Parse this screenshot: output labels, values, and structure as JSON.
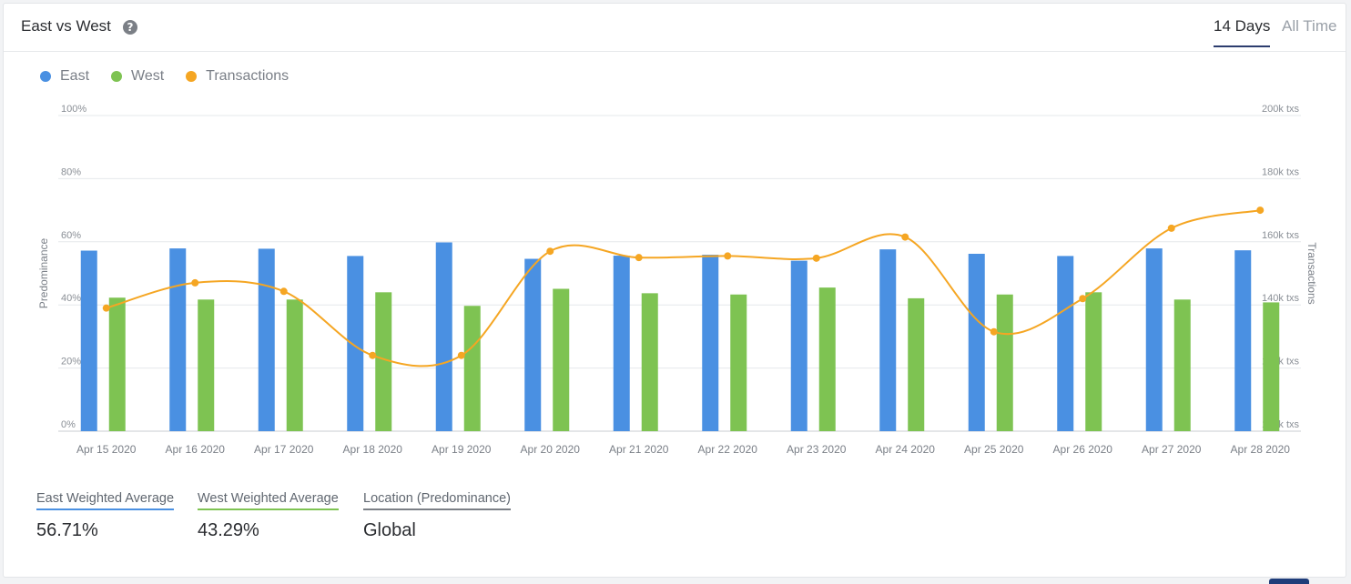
{
  "header": {
    "title": "East vs West",
    "help_icon": "question-circle-icon",
    "tabs": [
      {
        "label": "14 Days",
        "active": true
      },
      {
        "label": "All Time",
        "active": false
      }
    ]
  },
  "legend": [
    {
      "label": "East",
      "color": "#4a90e2"
    },
    {
      "label": "West",
      "color": "#7ec352"
    },
    {
      "label": "Transactions",
      "color": "#f5a623"
    }
  ],
  "chart_data": {
    "type": "bar",
    "categories": [
      "Apr 15 2020",
      "Apr 16 2020",
      "Apr 17 2020",
      "Apr 18 2020",
      "Apr 19 2020",
      "Apr 20 2020",
      "Apr 21 2020",
      "Apr 22 2020",
      "Apr 23 2020",
      "Apr 24 2020",
      "Apr 25 2020",
      "Apr 26 2020",
      "Apr 27 2020",
      "Apr 28 2020"
    ],
    "series": [
      {
        "name": "East",
        "type": "bar",
        "axis": "left",
        "color": "#4a90e2",
        "values": [
          57.2,
          57.9,
          57.8,
          55.5,
          59.8,
          54.6,
          55.6,
          55.9,
          54.0,
          57.6,
          56.2,
          55.5,
          57.9,
          57.3
        ]
      },
      {
        "name": "West",
        "type": "bar",
        "axis": "left",
        "color": "#7ec352",
        "values": [
          42.3,
          41.7,
          41.7,
          44.0,
          39.7,
          45.1,
          43.7,
          43.3,
          45.5,
          42.1,
          43.3,
          44.0,
          41.7,
          40.8
        ]
      },
      {
        "name": "Transactions",
        "type": "line",
        "axis": "right",
        "color": "#f5a623",
        "values": [
          139000,
          147000,
          144300,
          124000,
          124000,
          157000,
          155000,
          155500,
          154800,
          161500,
          131500,
          142000,
          164300,
          170000
        ]
      }
    ],
    "ylabel": "Predominance",
    "y2label": "Transactions",
    "ylim": [
      0,
      100
    ],
    "yticks": [
      "0%",
      "20%",
      "40%",
      "60%",
      "80%",
      "100%"
    ],
    "y2lim": [
      100000,
      200000
    ],
    "y2ticks": [
      "100k txs",
      "120k txs",
      "140k txs",
      "160k txs",
      "180k txs",
      "200k txs"
    ],
    "grid": true,
    "legend_position": "top-left"
  },
  "stats": [
    {
      "label": "East Weighted Average",
      "value": "56.71%",
      "color": "#4a90e2"
    },
    {
      "label": "West Weighted Average",
      "value": "43.29%",
      "color": "#7ec352"
    },
    {
      "label": "Location (Predominance)",
      "value": "Global",
      "color": "#7b7f86"
    }
  ]
}
